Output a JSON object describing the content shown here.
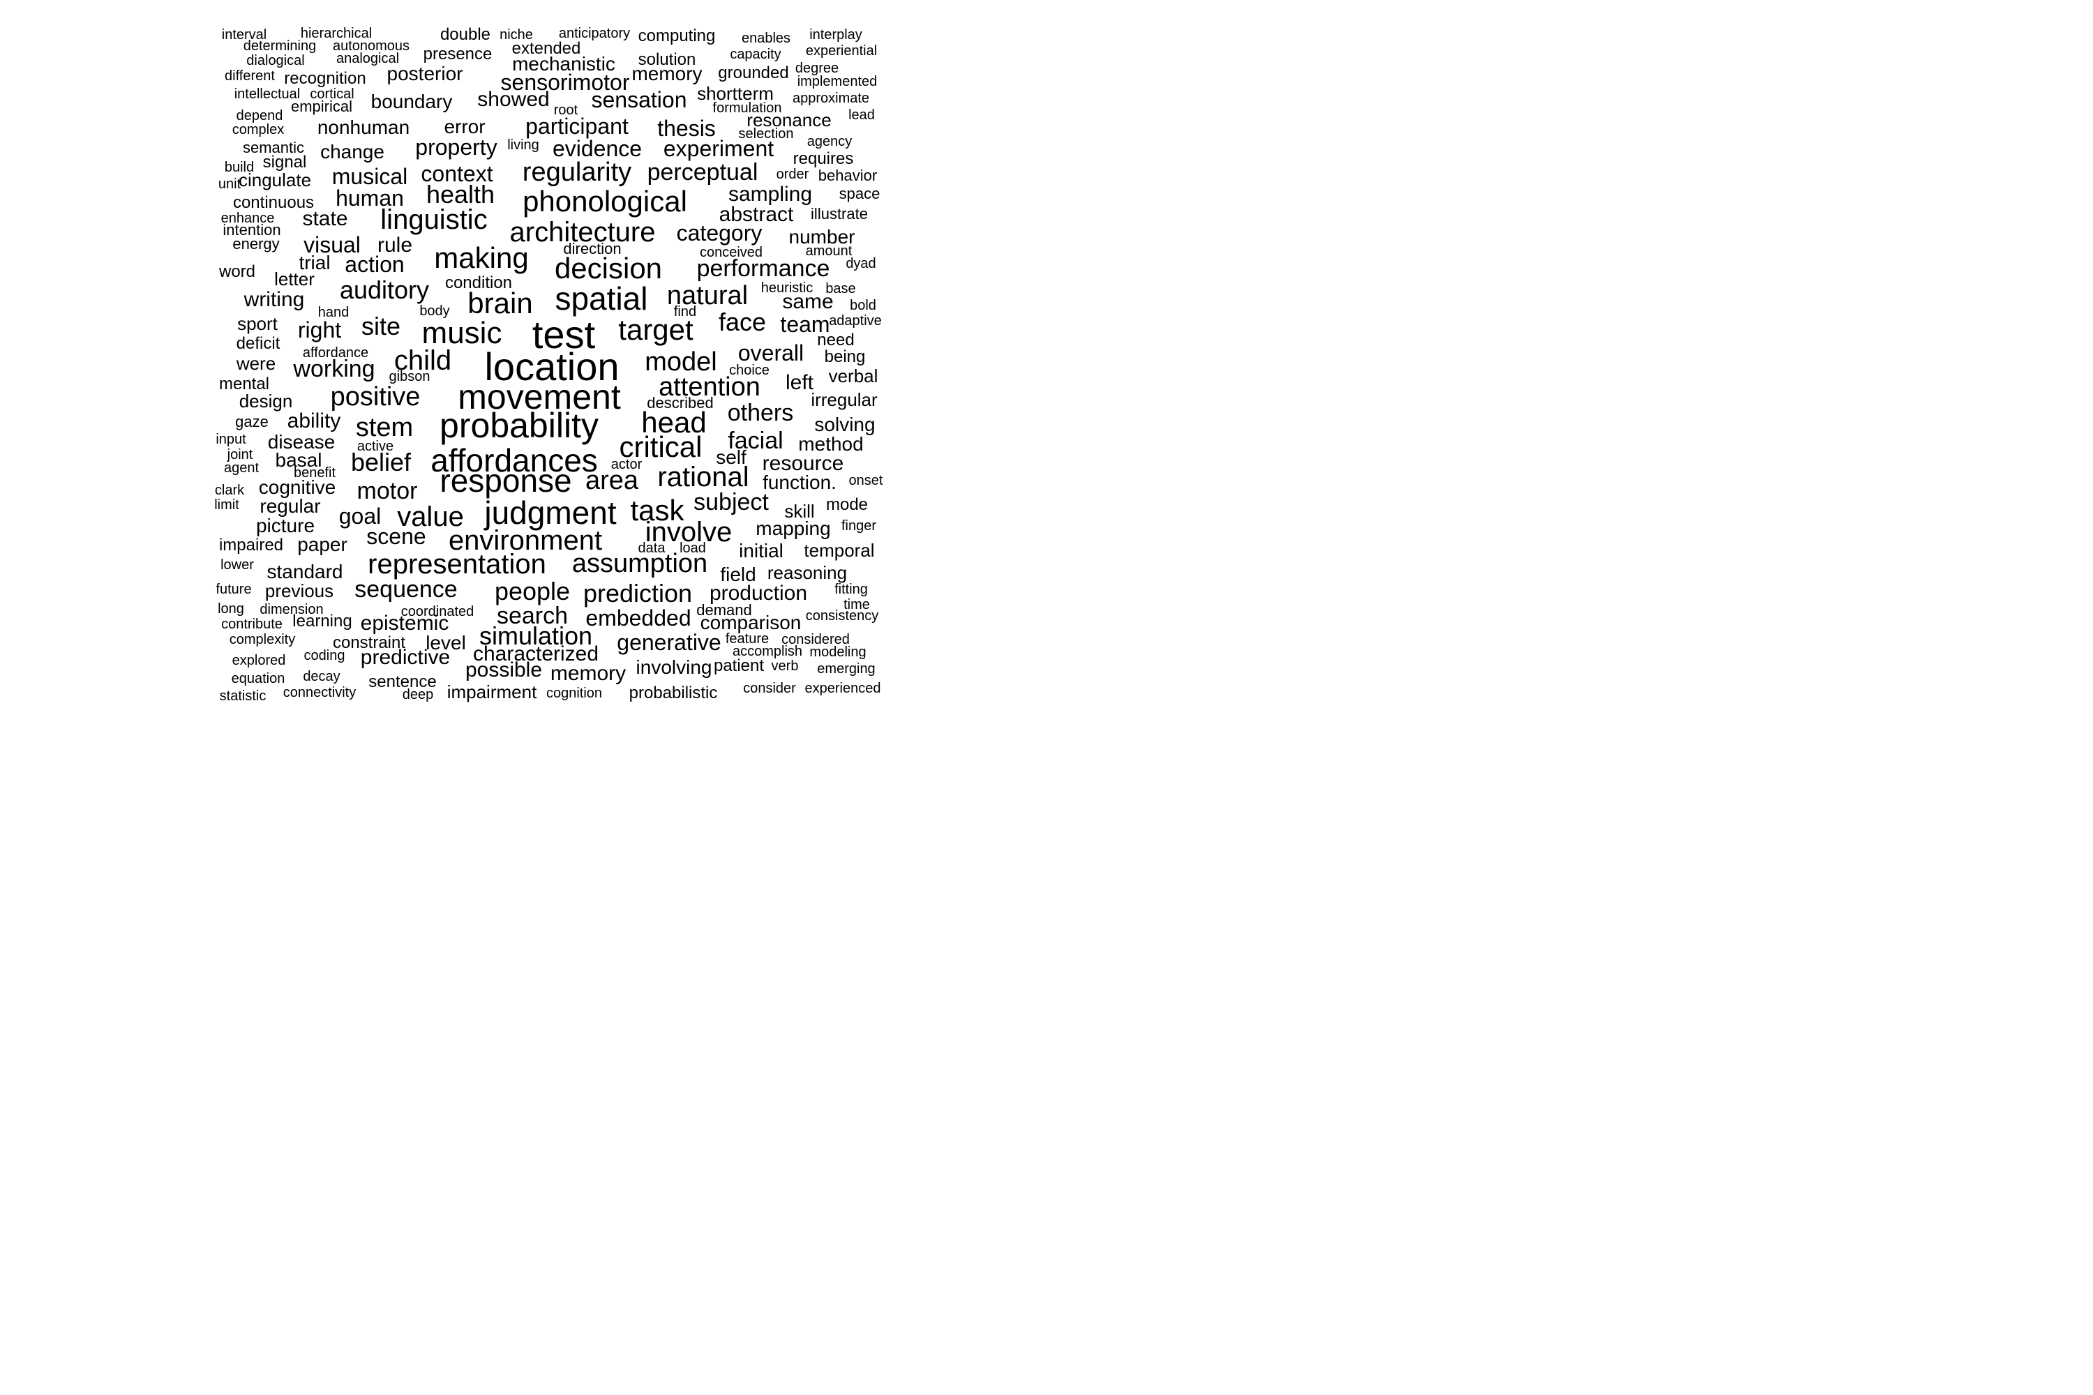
{
  "text_color": "#000000",
  "background": "#ffffff",
  "words": [
    "interval",
    "hierarchical",
    "double",
    "niche",
    "anticipatory",
    "computing",
    "enables",
    "interplay",
    "determining",
    "autonomous",
    "extended",
    "solution",
    "capacity",
    "experiential",
    "dialogical",
    "analogical",
    "presence",
    "mechanistic",
    "memory",
    "grounded",
    "degree",
    "implemented",
    "different",
    "recognition",
    "posterior",
    "sensorimotor",
    "shortterm",
    "approximate",
    "intellectual",
    "cortical",
    "empirical",
    "boundary",
    "showed",
    "sensation",
    "formulation",
    "root",
    "depend",
    "resonance",
    "lead",
    "complex",
    "nonhuman",
    "error",
    "participant",
    "thesis",
    "selection",
    "semantic",
    "living",
    "change",
    "property",
    "evidence",
    "experiment",
    "agency",
    "build",
    "signal",
    "requires",
    "unit",
    "cingulate",
    "musical",
    "context",
    "regularity",
    "perceptual",
    "order",
    "behavior",
    "continuous",
    "human",
    "health",
    "phonological",
    "sampling",
    "space",
    "enhance",
    "state",
    "linguistic",
    "abstract",
    "illustrate",
    "intention",
    "architecture",
    "category",
    "number",
    "energy",
    "visual",
    "rule",
    "direction",
    "conceived",
    "amount",
    "word",
    "trial",
    "action",
    "making",
    "decision",
    "performance",
    "dyad",
    "letter",
    "condition",
    "heuristic",
    "base",
    "writing",
    "auditory",
    "brain",
    "spatial",
    "natural",
    "same",
    "bold",
    "hand",
    "body",
    "find",
    "sport",
    "right",
    "site",
    "music",
    "test",
    "target",
    "face",
    "team",
    "adaptive",
    "deficit",
    "need",
    "affordance",
    "overall",
    "being",
    "were",
    "working",
    "child",
    "location",
    "model",
    "choice",
    "gibson",
    "verbal",
    "mental",
    "left",
    "attention",
    "design",
    "positive",
    "movement",
    "described",
    "irregular",
    "gaze",
    "ability",
    "stem",
    "probability",
    "head",
    "others",
    "solving",
    "input",
    "disease",
    "active",
    "critical",
    "facial",
    "method",
    "joint",
    "basal",
    "belief",
    "affordances",
    "self",
    "agent",
    "actor",
    "resource",
    "benefit",
    "response",
    "area",
    "rational",
    "onset",
    "clark",
    "cognitive",
    "motor",
    "function.",
    "limit",
    "regular",
    "subject",
    "skill",
    "mode",
    "goal",
    "value",
    "judgment",
    "task",
    "picture",
    "involve",
    "mapping",
    "finger",
    "impaired",
    "paper",
    "scene",
    "environment",
    "data",
    "load",
    "initial",
    "temporal",
    "lower",
    "representation",
    "assumption",
    "standard",
    "field",
    "reasoning",
    "future",
    "previous",
    "sequence",
    "people",
    "prediction",
    "production",
    "fitting",
    "long",
    "dimension",
    "time",
    "coordinated",
    "demand",
    "contribute",
    "learning",
    "epistemic",
    "search",
    "embedded",
    "comparison",
    "consistency",
    "complexity",
    "constraint",
    "level",
    "simulation",
    "generative",
    "feature",
    "considered",
    "coding",
    "accomplish",
    "modeling",
    "explored",
    "predictive",
    "characterized",
    "equation",
    "decay",
    "sentence",
    "possible",
    "memory",
    "involving",
    "patient",
    "verb",
    "emerging",
    "statistic",
    "connectivity",
    "deep",
    "impairment",
    "cognition",
    "probabilistic",
    "consider",
    "experienced"
  ]
}
